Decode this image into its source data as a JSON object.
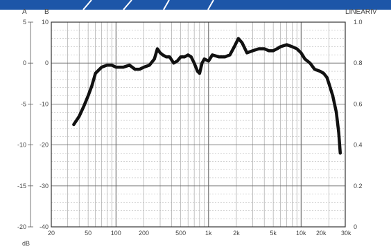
{
  "banner": {
    "color": "#1d56a8",
    "accent": "#ffffff"
  },
  "chart_data": {
    "type": "line",
    "title": "",
    "xlabel": "",
    "ylabel": "",
    "x_scale": "log",
    "xlim": [
      20,
      30000
    ],
    "grid": true,
    "axes": {
      "A": {
        "label": "A",
        "ticks": [
          "5",
          "0",
          "-5",
          "-10",
          "-15",
          "-20"
        ],
        "range": [
          -20,
          5
        ]
      },
      "B": {
        "label": "B",
        "ticks": [
          "10",
          "0",
          "-10",
          "-20",
          "-30",
          "-40"
        ],
        "range": [
          -40,
          10
        ]
      },
      "right": {
        "label": "LINEARIV",
        "ticks": [
          "1.0",
          "0.8",
          "0.6",
          "0.4",
          "0.2",
          "0"
        ],
        "range": [
          0,
          1.0
        ]
      },
      "unit_label": "dB"
    },
    "x_ticks": [
      {
        "value": 20,
        "label": "20"
      },
      {
        "value": 50,
        "label": "50"
      },
      {
        "value": 100,
        "label": "100"
      },
      {
        "value": 200,
        "label": "200"
      },
      {
        "value": 500,
        "label": "500"
      },
      {
        "value": 1000,
        "label": "1k"
      },
      {
        "value": 2000,
        "label": "2k"
      },
      {
        "value": 5000,
        "label": "5k"
      },
      {
        "value": 10000,
        "label": "10k"
      },
      {
        "value": 20000,
        "label": "20k"
      },
      {
        "value": 30000,
        "label": "30k"
      }
    ],
    "series": [
      {
        "axis": "B",
        "color": "#111111",
        "points": [
          [
            35,
            -15
          ],
          [
            40,
            -13
          ],
          [
            45,
            -10.5
          ],
          [
            50,
            -8
          ],
          [
            55,
            -5.5
          ],
          [
            60,
            -2.5
          ],
          [
            70,
            -1
          ],
          [
            80,
            -0.5
          ],
          [
            90,
            -0.5
          ],
          [
            100,
            -1
          ],
          [
            120,
            -1
          ],
          [
            140,
            -0.5
          ],
          [
            160,
            -1.5
          ],
          [
            180,
            -1.5
          ],
          [
            200,
            -1
          ],
          [
            230,
            -0.5
          ],
          [
            260,
            1
          ],
          [
            280,
            3.5
          ],
          [
            300,
            2.5
          ],
          [
            320,
            2
          ],
          [
            350,
            1.5
          ],
          [
            380,
            1.5
          ],
          [
            420,
            0
          ],
          [
            460,
            0.5
          ],
          [
            500,
            1.5
          ],
          [
            550,
            1.5
          ],
          [
            600,
            2
          ],
          [
            650,
            1.5
          ],
          [
            700,
            0
          ],
          [
            760,
            -2
          ],
          [
            800,
            -2.5
          ],
          [
            850,
            0
          ],
          [
            900,
            1
          ],
          [
            1000,
            0.5
          ],
          [
            1100,
            2
          ],
          [
            1300,
            1.5
          ],
          [
            1500,
            1.5
          ],
          [
            1700,
            2
          ],
          [
            1900,
            4
          ],
          [
            2100,
            6
          ],
          [
            2300,
            5
          ],
          [
            2600,
            2.5
          ],
          [
            3000,
            3
          ],
          [
            3500,
            3.5
          ],
          [
            4000,
            3.5
          ],
          [
            4500,
            3
          ],
          [
            5000,
            3
          ],
          [
            5500,
            3.5
          ],
          [
            6000,
            4
          ],
          [
            7000,
            4.5
          ],
          [
            8000,
            4
          ],
          [
            9000,
            3.5
          ],
          [
            10000,
            2.5
          ],
          [
            11000,
            1
          ],
          [
            12500,
            0
          ],
          [
            14000,
            -1.5
          ],
          [
            16000,
            -2
          ],
          [
            17500,
            -2.5
          ],
          [
            19000,
            -3.5
          ],
          [
            20000,
            -5
          ],
          [
            22000,
            -8
          ],
          [
            24000,
            -12
          ],
          [
            25500,
            -17
          ],
          [
            26500,
            -22
          ]
        ]
      }
    ]
  }
}
